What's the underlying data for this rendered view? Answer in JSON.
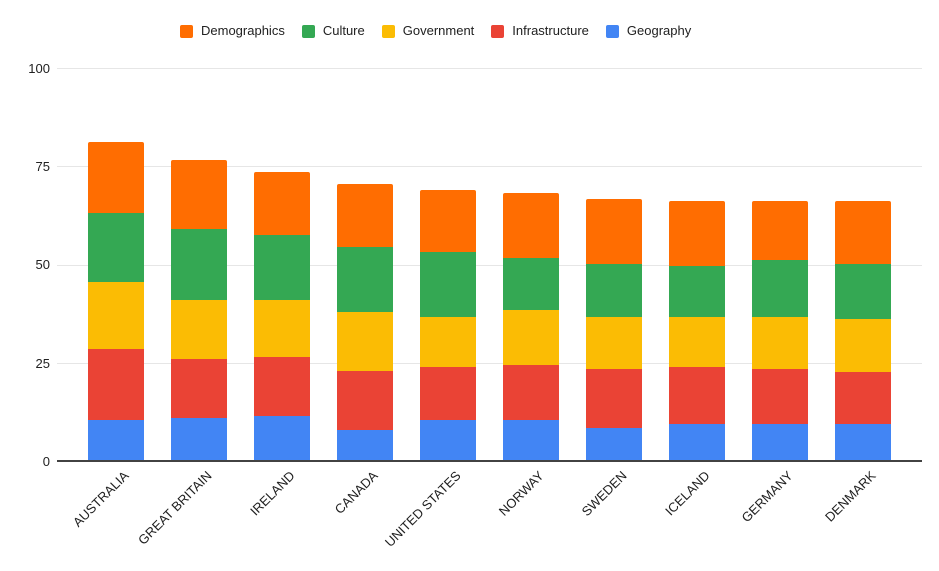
{
  "chart_data": {
    "type": "bar",
    "stacked": true,
    "title": "",
    "categories": [
      "AUSTRALIA",
      "GREAT BRITAIN",
      "IRELAND",
      "CANADA",
      "UNITED STATES",
      "NORWAY",
      "SWEDEN",
      "ICELAND",
      "GERMANY",
      "DENMARK"
    ],
    "series": [
      {
        "name": "Geography",
        "color": "#4285F4",
        "values": [
          10.5,
          11,
          11.5,
          8,
          10.5,
          10.5,
          8.5,
          9.5,
          9.5,
          9.5
        ]
      },
      {
        "name": "Infrastructure",
        "color": "#EA4335",
        "values": [
          18,
          15,
          15,
          15,
          13.5,
          14,
          15,
          14.5,
          14,
          13
        ]
      },
      {
        "name": "Government",
        "color": "#FBBC04",
        "values": [
          17,
          15,
          14.5,
          15,
          12.5,
          14,
          13,
          12.5,
          13,
          13.5
        ]
      },
      {
        "name": "Culture",
        "color": "#34A853",
        "values": [
          17.5,
          18,
          16.5,
          16.5,
          16.5,
          13,
          13.5,
          13,
          14.5,
          14
        ]
      },
      {
        "name": "Demographics",
        "color": "#FF6D01",
        "values": [
          18,
          17.5,
          16,
          16,
          16,
          16.5,
          16.5,
          16.5,
          15,
          16
        ]
      }
    ],
    "totals": [
      81,
      76.5,
      73.5,
      70.5,
      69,
      68,
      66.5,
      66,
      66,
      66
    ],
    "legend": [
      "Demographics",
      "Culture",
      "Government",
      "Infrastructure",
      "Geography"
    ],
    "legend_position": "top",
    "y_ticks": [
      0,
      25,
      50,
      75,
      100
    ],
    "ylim": [
      0,
      100
    ],
    "grid": true,
    "colors": {
      "gridline": "#e6e6e6",
      "axis_line": "#424242",
      "text": "#212121",
      "background": "#ffffff"
    }
  }
}
